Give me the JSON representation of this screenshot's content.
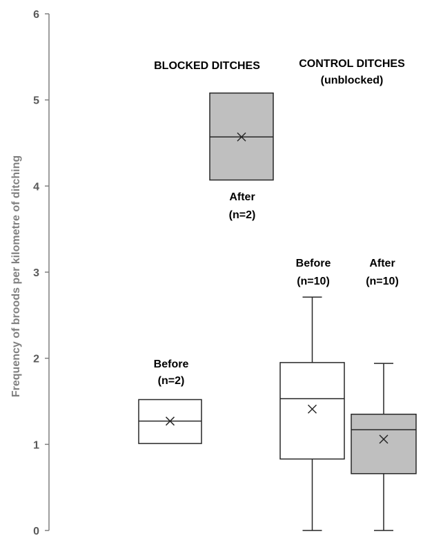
{
  "chart_data": {
    "type": "box",
    "ylabel": "Frequency of broods per kilometre of ditching",
    "ylim": [
      0,
      6
    ],
    "yticks": [
      "0",
      "1",
      "2",
      "3",
      "4",
      "5",
      "6"
    ],
    "grid": false,
    "groups": [
      {
        "title_lines": [
          "BLOCKED DITCHES"
        ],
        "boxes": [
          {
            "label_lines": [
              "Before",
              "(n=2)"
            ],
            "fill": "#ffffff",
            "min": 1.01,
            "q1": 1.01,
            "median": 1.27,
            "q3": 1.52,
            "max": 1.52,
            "mean": 1.27
          },
          {
            "label_lines": [
              "After",
              "(n=2)"
            ],
            "fill": "#bfbfbf",
            "min": 4.07,
            "q1": 4.07,
            "median": 4.57,
            "q3": 5.08,
            "max": 5.08,
            "mean": 4.57
          }
        ]
      },
      {
        "title_lines": [
          "CONTROL DITCHES",
          "(unblocked)"
        ],
        "boxes": [
          {
            "label_lines": [
              "Before",
              "(n=10)"
            ],
            "fill": "#ffffff",
            "min": 0.0,
            "q1": 0.83,
            "median": 1.53,
            "q3": 1.95,
            "max": 2.71,
            "mean": 1.41
          },
          {
            "label_lines": [
              "After",
              "(n=10)"
            ],
            "fill": "#bfbfbf",
            "min": 0.0,
            "q1": 0.66,
            "median": 1.17,
            "q3": 1.35,
            "max": 1.94,
            "mean": 1.06
          }
        ]
      }
    ]
  },
  "colors": {
    "axis": "#7f7f7f",
    "box_stroke": "#262626",
    "after_fill": "#bfbfbf",
    "before_fill": "#ffffff",
    "text": "#000000"
  }
}
